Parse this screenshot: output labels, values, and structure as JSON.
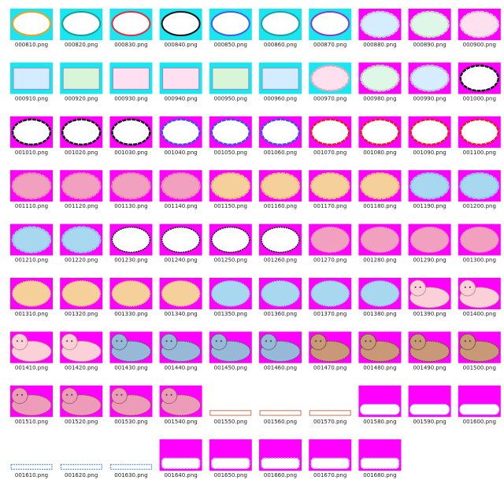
{
  "files": [
    "000810.png",
    "000820.png",
    "000830.png",
    "000840.png",
    "000850.png",
    "000860.png",
    "000870.png",
    "000880.png",
    "000890.png",
    "000900.png",
    "000910.png",
    "000920.png",
    "000930.png",
    "000940.png",
    "000950.png",
    "000960.png",
    "000970.png",
    "000980.png",
    "000990.png",
    "001000.png",
    "001010.png",
    "001020.png",
    "001030.png",
    "001040.png",
    "001050.png",
    "001060.png",
    "001070.png",
    "001080.png",
    "001090.png",
    "001100.png",
    "001110.png",
    "001120.png",
    "001130.png",
    "001140.png",
    "001150.png",
    "001160.png",
    "001170.png",
    "001180.png",
    "001190.png",
    "001200.png",
    "001210.png",
    "001220.png",
    "001230.png",
    "001240.png",
    "001250.png",
    "001260.png",
    "001270.png",
    "001280.png",
    "001290.png",
    "001300.png",
    "001310.png",
    "001320.png",
    "001330.png",
    "001340.png",
    "001350.png",
    "001360.png",
    "001370.png",
    "001380.png",
    "001390.png",
    "001400.png",
    "001410.png",
    "001420.png",
    "001430.png",
    "001440.png",
    "001450.png",
    "001460.png",
    "001470.png",
    "001480.png",
    "001490.png",
    "001500.png",
    "001510.png",
    "001520.png",
    "001530.png",
    "001540.png",
    "001550.png",
    "001560.png",
    "001570.png",
    "001580.png",
    "001590.png",
    "001600.png",
    "001610.png",
    "001620.png",
    "001630.png",
    "001640.png",
    "001650.png",
    "001660.png",
    "001670.png",
    "001680.png"
  ]
}
